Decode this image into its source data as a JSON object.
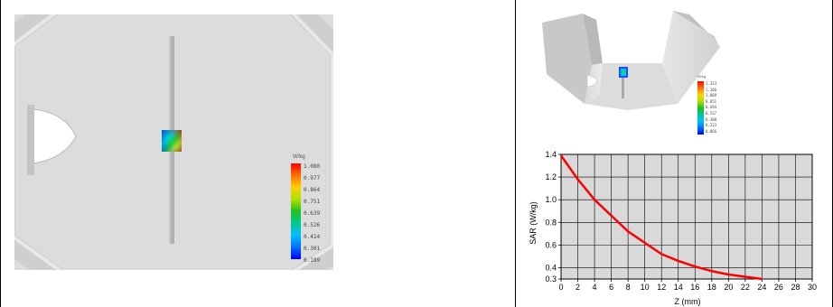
{
  "left_legend": {
    "unit": "W/kg",
    "values": [
      "1.080",
      "0.977",
      "0.864",
      "0.751",
      "0.639",
      "0.526",
      "0.414",
      "0.301",
      "0.189"
    ],
    "colors": [
      "#ff0000",
      "#ff7000",
      "#ffd000",
      "#b0e000",
      "#20c020",
      "#00c890",
      "#00c0ff",
      "#0070ff",
      "#0000ff"
    ]
  },
  "tr_legend": {
    "unit": "W/kg",
    "values": [
      "1.323",
      "1.166",
      "1.009",
      "0.851",
      "0.694",
      "0.537",
      "0.380",
      "0.223",
      "0.066"
    ]
  },
  "chart_data": {
    "type": "line",
    "xlabel": "Z (mm)",
    "ylabel": "SAR (W/kg)",
    "xlim": [
      0,
      30
    ],
    "ylim": [
      0.3,
      1.4
    ],
    "xticks": [
      "0",
      "2",
      "4",
      "6",
      "8",
      "10",
      "12",
      "14",
      "16",
      "18",
      "20",
      "22",
      "24",
      "26",
      "28",
      "30"
    ],
    "yticks": [
      "0.3",
      "0.4",
      "0.6",
      "0.8",
      "1.0",
      "1.2",
      "1.4"
    ],
    "grid": true,
    "series": [
      {
        "color": "#ff0000",
        "x": [
          0,
          2,
          4,
          6,
          8,
          10,
          12,
          14,
          16,
          18,
          20,
          22,
          24
        ],
        "y": [
          1.39,
          1.18,
          1.0,
          0.86,
          0.72,
          0.62,
          0.52,
          0.46,
          0.41,
          0.37,
          0.34,
          0.32,
          0.3
        ]
      }
    ]
  }
}
